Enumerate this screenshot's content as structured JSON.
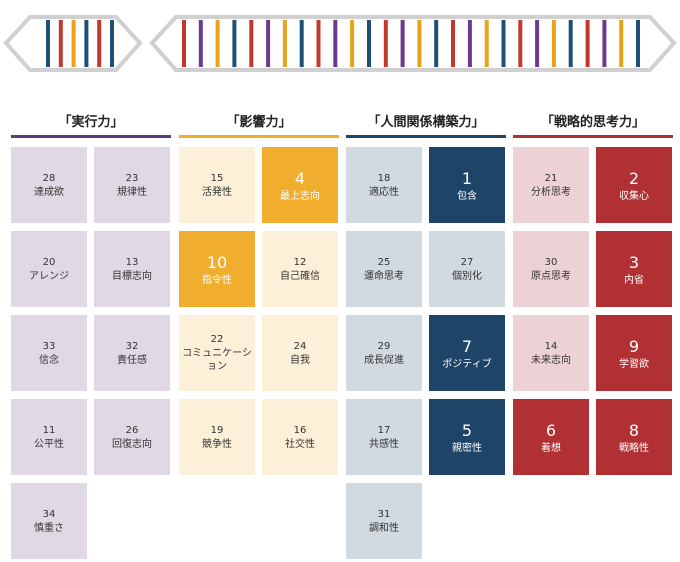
{
  "banner": {
    "left_stripes": [
      "#1f4e79",
      "#c0392b",
      "#e8a317",
      "#1f4e79",
      "#c0392b",
      "#1f4e79"
    ],
    "right_stripes": [
      "#c0392b",
      "#6b3a8c",
      "#e8a317",
      "#1f4e79",
      "#c0392b",
      "#6b3a8c",
      "#e8a317",
      "#1f4e79",
      "#c0392b",
      "#6b3a8c",
      "#e8a317",
      "#1f4e79",
      "#c0392b",
      "#6b3a8c",
      "#e8a317",
      "#1f4e79",
      "#c0392b",
      "#6b3a8c",
      "#e8a317",
      "#1f4e79",
      "#c0392b",
      "#6b3a8c",
      "#e8a317",
      "#1f4e79",
      "#c0392b",
      "#6b3a8c",
      "#e8a317",
      "#1f4e79"
    ]
  },
  "domains": [
    {
      "title": "「実行力」",
      "accent": "#5b3b7a",
      "light": "#e0d8e4",
      "strong": "#5b3b7a",
      "themes": [
        {
          "rank": "28",
          "name": "達成欲"
        },
        {
          "rank": "23",
          "name": "規律性"
        },
        {
          "rank": "20",
          "name": "アレンジ"
        },
        {
          "rank": "13",
          "name": "目標志向"
        },
        {
          "rank": "33",
          "name": "信念"
        },
        {
          "rank": "32",
          "name": "責任感"
        },
        {
          "rank": "11",
          "name": "公平性"
        },
        {
          "rank": "26",
          "name": "回復志向"
        },
        {
          "rank": "34",
          "name": "慎重さ"
        }
      ]
    },
    {
      "title": "「影響力」",
      "accent": "#f0ad2e",
      "light": "#fdf0d8",
      "strong": "#f0ad2e",
      "themes": [
        {
          "rank": "15",
          "name": "活発性"
        },
        {
          "rank": "4",
          "name": "最上志向"
        },
        {
          "rank": "10",
          "name": "指令性"
        },
        {
          "rank": "12",
          "name": "自己確信"
        },
        {
          "rank": "22",
          "name": "コミュニケーション"
        },
        {
          "rank": "24",
          "name": "自我"
        },
        {
          "rank": "19",
          "name": "競争性"
        },
        {
          "rank": "16",
          "name": "社交性"
        }
      ]
    },
    {
      "title": "「人間関係構築力」",
      "accent": "#1e4468",
      "light": "#d1d9e1",
      "strong": "#1e4468",
      "themes": [
        {
          "rank": "18",
          "name": "適応性"
        },
        {
          "rank": "1",
          "name": "包含"
        },
        {
          "rank": "25",
          "name": "運命思考"
        },
        {
          "rank": "27",
          "name": "個別化"
        },
        {
          "rank": "29",
          "name": "成長促進"
        },
        {
          "rank": "7",
          "name": "ポジティブ"
        },
        {
          "rank": "17",
          "name": "共感性"
        },
        {
          "rank": "5",
          "name": "親密性"
        },
        {
          "rank": "31",
          "name": "調和性"
        }
      ]
    },
    {
      "title": "「戦略的思考力」",
      "accent": "#b03034",
      "light": "#ecd2d4",
      "strong": "#b03034",
      "themes": [
        {
          "rank": "21",
          "name": "分析思考"
        },
        {
          "rank": "2",
          "name": "収集心"
        },
        {
          "rank": "30",
          "name": "原点思考"
        },
        {
          "rank": "3",
          "name": "内省"
        },
        {
          "rank": "14",
          "name": "未来志向"
        },
        {
          "rank": "9",
          "name": "学習欲"
        },
        {
          "rank": "6",
          "name": "着想"
        },
        {
          "rank": "8",
          "name": "戦略性"
        }
      ]
    }
  ]
}
